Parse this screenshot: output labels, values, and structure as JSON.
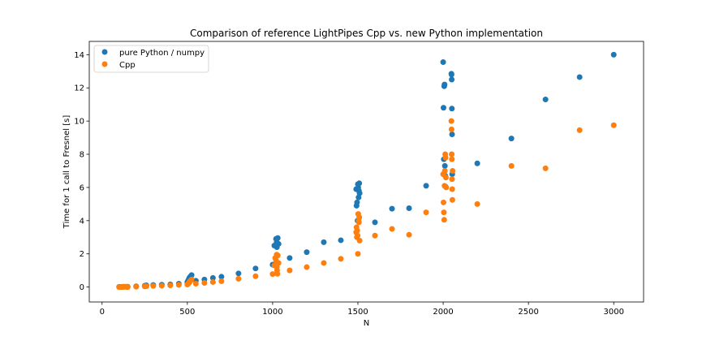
{
  "chart_data": {
    "type": "scatter",
    "title": "Comparison of reference LightPipes Cpp vs. new Python implementation",
    "xlabel": "N",
    "ylabel": "Time for 1 call to Fresnel [s]",
    "xlim": [
      -75,
      3175
    ],
    "ylim": [
      -0.9,
      14.8
    ],
    "xticks": [
      0,
      500,
      1000,
      1500,
      2000,
      2500,
      3000
    ],
    "yticks": [
      0,
      2,
      4,
      6,
      8,
      10,
      12,
      14
    ],
    "grid": false,
    "legend_position": "top-left",
    "series": [
      {
        "name": "pure Python / numpy",
        "color": "#1f77b4",
        "points": [
          [
            100,
            0.01
          ],
          [
            110,
            0.01
          ],
          [
            120,
            0.01
          ],
          [
            128,
            0.02
          ],
          [
            140,
            0.02
          ],
          [
            150,
            0.02
          ],
          [
            200,
            0.04
          ],
          [
            250,
            0.08
          ],
          [
            256,
            0.09
          ],
          [
            260,
            0.1
          ],
          [
            300,
            0.12
          ],
          [
            350,
            0.14
          ],
          [
            400,
            0.16
          ],
          [
            450,
            0.2
          ],
          [
            500,
            0.3
          ],
          [
            505,
            0.4
          ],
          [
            510,
            0.5
          ],
          [
            512,
            0.55
          ],
          [
            515,
            0.6
          ],
          [
            520,
            0.65
          ],
          [
            525,
            0.72
          ],
          [
            550,
            0.38
          ],
          [
            600,
            0.45
          ],
          [
            650,
            0.55
          ],
          [
            700,
            0.62
          ],
          [
            800,
            0.82
          ],
          [
            900,
            1.12
          ],
          [
            1000,
            1.35
          ],
          [
            1010,
            2.5
          ],
          [
            1020,
            2.9
          ],
          [
            1024,
            2.7
          ],
          [
            1025,
            2.4
          ],
          [
            1030,
            2.95
          ],
          [
            1035,
            2.6
          ],
          [
            1100,
            1.75
          ],
          [
            1200,
            2.1
          ],
          [
            1300,
            2.7
          ],
          [
            1400,
            2.82
          ],
          [
            1490,
            5.9
          ],
          [
            1492,
            4.9
          ],
          [
            1495,
            5.1
          ],
          [
            1498,
            4.0
          ],
          [
            1500,
            6.2
          ],
          [
            1502,
            6.0
          ],
          [
            1504,
            5.4
          ],
          [
            1506,
            5.8
          ],
          [
            1508,
            6.25
          ],
          [
            1510,
            5.65
          ],
          [
            1600,
            3.9
          ],
          [
            1700,
            4.72
          ],
          [
            1800,
            4.75
          ],
          [
            1900,
            6.1
          ],
          [
            2000,
            13.55
          ],
          [
            2002,
            10.8
          ],
          [
            2004,
            7.7
          ],
          [
            2006,
            12.1
          ],
          [
            2008,
            12.2
          ],
          [
            2010,
            7.3
          ],
          [
            2012,
            6.7
          ],
          [
            2014,
            6.05
          ],
          [
            2048,
            12.85
          ],
          [
            2049,
            12.8
          ],
          [
            2050,
            12.5
          ],
          [
            2051,
            10.75
          ],
          [
            2052,
            9.2
          ],
          [
            2053,
            6.8
          ],
          [
            2200,
            7.45
          ],
          [
            2400,
            8.95
          ],
          [
            2600,
            11.3
          ],
          [
            2800,
            12.65
          ],
          [
            3000,
            14.0
          ]
        ]
      },
      {
        "name": "Cpp",
        "color": "#ff7f0e",
        "points": [
          [
            100,
            0.0
          ],
          [
            110,
            0.0
          ],
          [
            120,
            0.01
          ],
          [
            128,
            0.01
          ],
          [
            140,
            0.01
          ],
          [
            150,
            0.0
          ],
          [
            200,
            0.02
          ],
          [
            250,
            0.04
          ],
          [
            256,
            0.05
          ],
          [
            260,
            0.05
          ],
          [
            300,
            0.07
          ],
          [
            350,
            0.08
          ],
          [
            400,
            0.1
          ],
          [
            450,
            0.13
          ],
          [
            500,
            0.15
          ],
          [
            505,
            0.2
          ],
          [
            510,
            0.25
          ],
          [
            512,
            0.3
          ],
          [
            515,
            0.35
          ],
          [
            520,
            0.4
          ],
          [
            525,
            0.45
          ],
          [
            550,
            0.2
          ],
          [
            600,
            0.25
          ],
          [
            650,
            0.3
          ],
          [
            700,
            0.35
          ],
          [
            800,
            0.5
          ],
          [
            900,
            0.65
          ],
          [
            1000,
            0.78
          ],
          [
            1010,
            1.3
          ],
          [
            1015,
            1.75
          ],
          [
            1020,
            1.6
          ],
          [
            1024,
            1.95
          ],
          [
            1025,
            1.2
          ],
          [
            1026,
            1.0
          ],
          [
            1028,
            0.8
          ],
          [
            1030,
            1.9
          ],
          [
            1035,
            1.45
          ],
          [
            1100,
            1.0
          ],
          [
            1200,
            1.2
          ],
          [
            1300,
            1.45
          ],
          [
            1400,
            1.7
          ],
          [
            1490,
            3.3
          ],
          [
            1492,
            3.6
          ],
          [
            1494,
            3.0
          ],
          [
            1496,
            3.4
          ],
          [
            1498,
            3.1
          ],
          [
            1500,
            2.0
          ],
          [
            1502,
            4.4
          ],
          [
            1504,
            4.0
          ],
          [
            1506,
            3.9
          ],
          [
            1508,
            4.2
          ],
          [
            1510,
            2.8
          ],
          [
            1600,
            3.1
          ],
          [
            1700,
            3.5
          ],
          [
            1800,
            3.15
          ],
          [
            1900,
            4.5
          ],
          [
            2000,
            6.8
          ],
          [
            2002,
            5.1
          ],
          [
            2004,
            4.5
          ],
          [
            2006,
            4.05
          ],
          [
            2008,
            6.1
          ],
          [
            2010,
            7.0
          ],
          [
            2012,
            8.0
          ],
          [
            2014,
            7.8
          ],
          [
            2016,
            6.6
          ],
          [
            2018,
            6.0
          ],
          [
            2048,
            10.0
          ],
          [
            2049,
            9.5
          ],
          [
            2050,
            8.0
          ],
          [
            2051,
            7.7
          ],
          [
            2052,
            6.5
          ],
          [
            2053,
            5.9
          ],
          [
            2054,
            5.25
          ],
          [
            2055,
            7.0
          ],
          [
            2200,
            5.0
          ],
          [
            2400,
            7.3
          ],
          [
            2600,
            7.15
          ],
          [
            2800,
            9.45
          ],
          [
            3000,
            9.75
          ]
        ]
      }
    ]
  }
}
